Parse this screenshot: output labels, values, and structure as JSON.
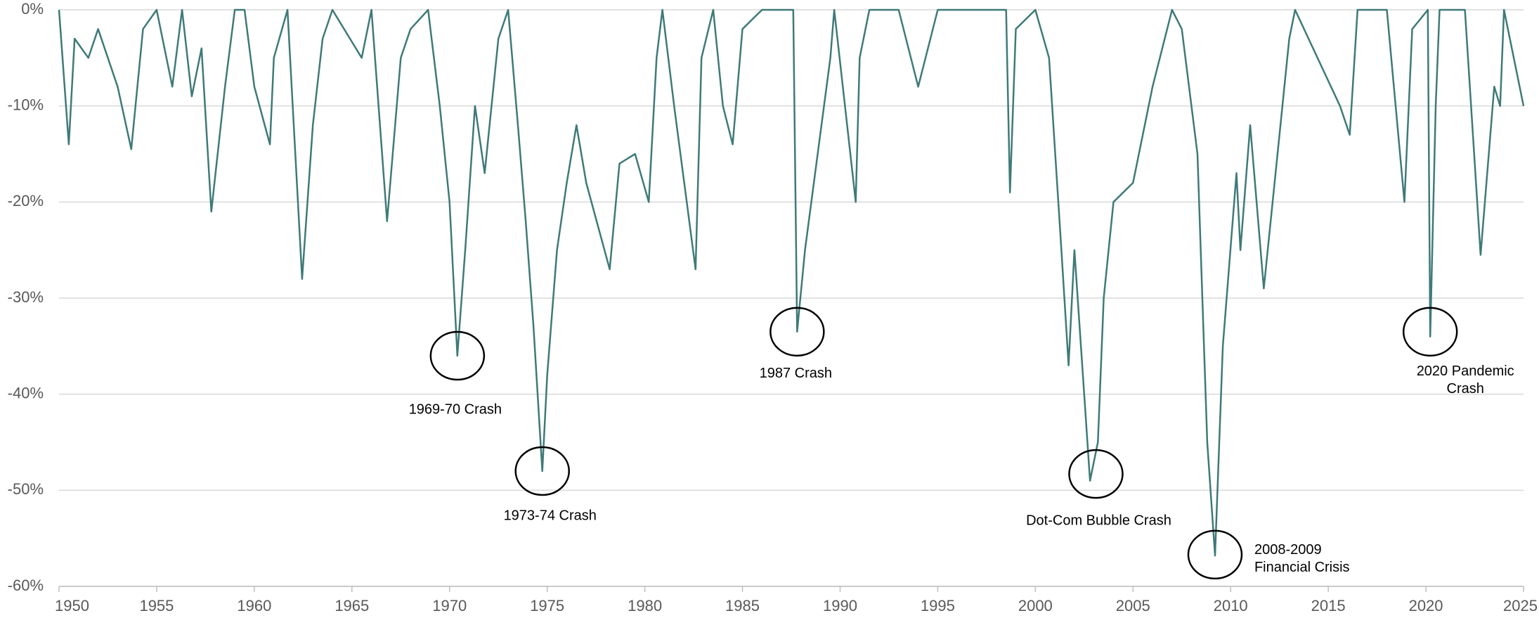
{
  "chart_data": {
    "type": "line",
    "color": "#3f7a78",
    "grid": true,
    "xlim": [
      1950,
      2025
    ],
    "xticks": [
      1950,
      1955,
      1960,
      1965,
      1970,
      1975,
      1980,
      1985,
      1990,
      1995,
      2000,
      2005,
      2010,
      2015,
      2020,
      2025
    ],
    "ylim": [
      -60,
      0
    ],
    "yticks": [
      {
        "value": 0,
        "label": "0%"
      },
      {
        "value": -10,
        "label": "-10%"
      },
      {
        "value": -20,
        "label": "-20%"
      },
      {
        "value": -30,
        "label": "-30%"
      },
      {
        "value": -40,
        "label": "-40%"
      },
      {
        "value": -50,
        "label": "-50%"
      },
      {
        "value": -60,
        "label": "-60%"
      }
    ],
    "x": [
      1950.0,
      1950.5,
      1950.8,
      1951.5,
      1952.0,
      1953.0,
      1953.7,
      1954.3,
      1955.0,
      1955.8,
      1956.3,
      1956.8,
      1957.3,
      1957.8,
      1958.5,
      1959.0,
      1959.5,
      1960.0,
      1960.8,
      1961.0,
      1961.7,
      1962.45,
      1963.0,
      1963.5,
      1964.0,
      1965.5,
      1966.0,
      1966.8,
      1967.5,
      1968.0,
      1968.9,
      1969.5,
      1970.0,
      1970.4,
      1970.8,
      1971.3,
      1971.8,
      1972.5,
      1973.0,
      1973.5,
      1973.9,
      1974.3,
      1974.75,
      1975.0,
      1975.5,
      1976.0,
      1976.5,
      1977.0,
      1978.2,
      1978.7,
      1979.5,
      1980.2,
      1980.6,
      1980.9,
      1981.5,
      1982.6,
      1982.9,
      1983.5,
      1984.0,
      1984.5,
      1985.0,
      1986.0,
      1987.6,
      1987.8,
      1988.2,
      1989.5,
      1989.7,
      1990.8,
      1991.0,
      1991.5,
      1993.0,
      1994.0,
      1995.0,
      1998.5,
      1998.7,
      1999.0,
      2000.0,
      2000.7,
      2001.3,
      2001.7,
      2002.0,
      2002.5,
      2002.8,
      2003.2,
      2003.5,
      2004.0,
      2005.0,
      2006.0,
      2007.0,
      2007.5,
      2008.3,
      2008.8,
      2009.2,
      2009.6,
      2010.3,
      2010.5,
      2011.0,
      2011.7,
      2012.5,
      2013.0,
      2013.3,
      2015.6,
      2016.1,
      2016.5,
      2018.0,
      2018.9,
      2019.3,
      2020.1,
      2020.22,
      2020.5,
      2020.7,
      2022.0,
      2022.8,
      2023.5,
      2023.8,
      2024.0,
      2025.0
    ],
    "values": [
      0,
      -14,
      -3,
      -5,
      -2,
      -8,
      -14.5,
      -2,
      0,
      -8,
      0,
      -9,
      -4,
      -21,
      -8,
      0,
      0,
      -8,
      -14,
      -5,
      0,
      -28,
      -12,
      -3,
      0,
      -5,
      0,
      -22,
      -5,
      -2,
      0,
      -10,
      -20,
      -36,
      -25,
      -10,
      -17,
      -3,
      0,
      -12,
      -22,
      -33,
      -48,
      -38,
      -25,
      -18,
      -12,
      -18,
      -27,
      -16,
      -15,
      -20,
      -5,
      0,
      -10,
      -27,
      -5,
      0,
      -10,
      -14,
      -2,
      0,
      0,
      -33.5,
      -25,
      -5,
      0,
      -20,
      -5,
      0,
      0,
      -8,
      0,
      0,
      -19,
      -2,
      0,
      -5,
      -24,
      -37,
      -25,
      -40,
      -49,
      -45,
      -30,
      -20,
      -18,
      -8,
      0,
      -2,
      -15,
      -45,
      -56.8,
      -35,
      -17,
      -25,
      -12,
      -29,
      -13,
      -3,
      0,
      -10,
      -13,
      0,
      0,
      -20,
      -2,
      0,
      -34,
      -10,
      0,
      0,
      -25.5,
      -8,
      -10,
      0,
      -10
    ],
    "annotations": [
      {
        "text": [
          "1969-70 Crash"
        ],
        "x": 1970.4,
        "y": -36
      },
      {
        "text": [
          "1973-74 Crash"
        ],
        "x": 1974.75,
        "y": -48
      },
      {
        "text": [
          "1987 Crash"
        ],
        "x": 1987.8,
        "y": -33.5
      },
      {
        "text": [
          "Dot-Com Bubble Crash"
        ],
        "x": 2003.1,
        "y": -48.3
      },
      {
        "text": [
          "2008-2009",
          "Financial Crisis"
        ],
        "x": 2009.2,
        "y": -56.7
      },
      {
        "text": [
          "2020 Pandemic",
          "Crash"
        ],
        "x": 2020.22,
        "y": -33.5
      }
    ]
  }
}
